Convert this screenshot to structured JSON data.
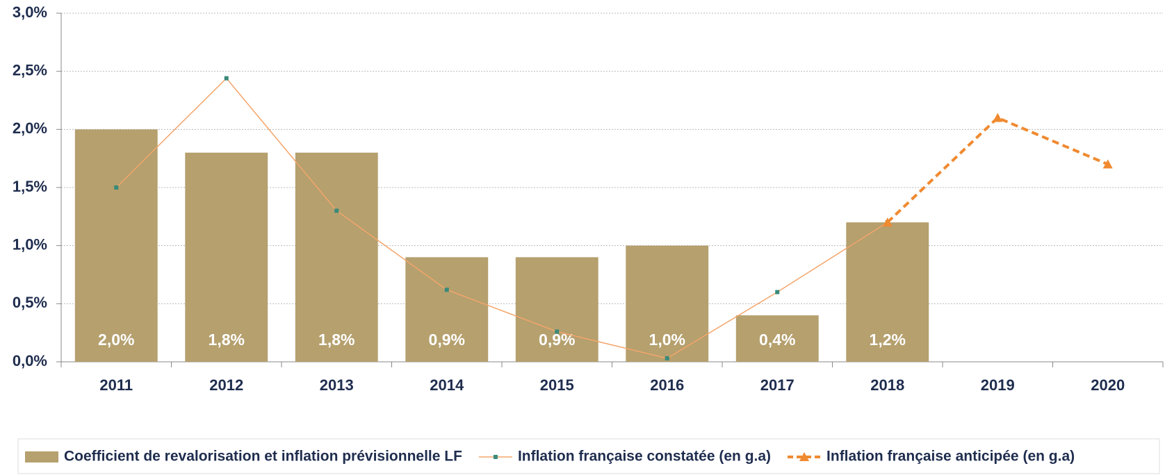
{
  "chart_data": {
    "type": "bar",
    "categories": [
      "2011",
      "2012",
      "2013",
      "2014",
      "2015",
      "2016",
      "2017",
      "2018",
      "2019",
      "2020"
    ],
    "series": [
      {
        "name": "Coefficient de revalorisation et inflation prévisionnelle LF",
        "type": "bar",
        "color": "#b5a06e",
        "values": [
          2.0,
          1.8,
          1.8,
          0.9,
          0.9,
          1.0,
          0.4,
          1.2,
          null,
          null
        ],
        "value_labels": [
          "2,0%",
          "1,8%",
          "1,8%",
          "0,9%",
          "0,9%",
          "1,0%",
          "0,4%",
          "1,2%",
          null,
          null
        ]
      },
      {
        "name": "Inflation française constatée  (en g.a)",
        "type": "line",
        "color": "#f4a56a",
        "marker_color": "#3a8a7a",
        "values": [
          1.5,
          2.44,
          1.3,
          0.62,
          0.26,
          0.03,
          0.6,
          1.2,
          null,
          null
        ]
      },
      {
        "name": "Inflation française anticipée (en g.a)",
        "type": "line",
        "color": "#f08a30",
        "dashed": true,
        "marker": "triangle",
        "values": [
          null,
          null,
          null,
          null,
          null,
          null,
          null,
          1.2,
          2.1,
          1.7
        ]
      }
    ],
    "ylim": [
      0,
      3.0
    ],
    "yticks": [
      {
        "value": 0,
        "label": "0,0%"
      },
      {
        "value": 0.5,
        "label": "0,5%"
      },
      {
        "value": 1.0,
        "label": "1,0%"
      },
      {
        "value": 1.5,
        "label": "1,5%"
      },
      {
        "value": 2.0,
        "label": "2,0%"
      },
      {
        "value": 2.5,
        "label": "2,5%"
      },
      {
        "value": 3.0,
        "label": "3,0%"
      }
    ],
    "grid": true
  }
}
